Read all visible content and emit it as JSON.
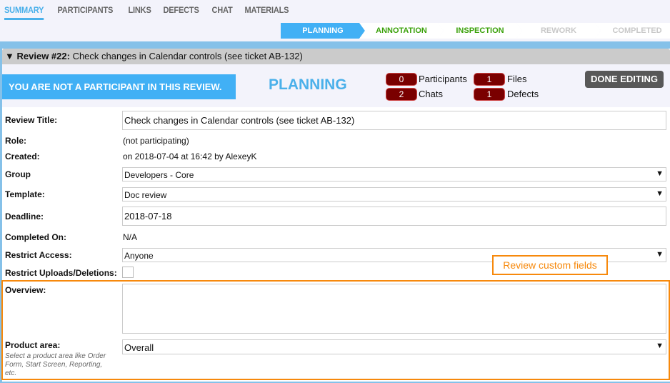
{
  "tabs": [
    "SUMMARY",
    "PARTICIPANTS",
    "LINKS",
    "DEFECTS",
    "CHAT",
    "MATERIALS"
  ],
  "steps": [
    {
      "label": "PLANNING",
      "color": "#ffffff"
    },
    {
      "label": "ANNOTATION",
      "color": "#3aa10a"
    },
    {
      "label": "INSPECTION",
      "color": "#3aa10a"
    },
    {
      "label": "REWORK",
      "color": "#c8c8c8"
    },
    {
      "label": "COMPLETED",
      "color": "#c8c8c8"
    }
  ],
  "review": {
    "title_prefix": "Review #22:",
    "title": "Check changes in Calendar controls (see ticket AB-132)"
  },
  "notice": "YOU ARE NOT A PARTICIPANT IN THIS REVIEW.",
  "phase": "PLANNING",
  "counts": {
    "participants": {
      "n": "0",
      "label": "Participants"
    },
    "files": {
      "n": "1",
      "label": "Files"
    },
    "chats": {
      "n": "2",
      "label": "Chats"
    },
    "defects": {
      "n": "1",
      "label": "Defects"
    }
  },
  "done_label": "DONE EDITING",
  "form": {
    "title_label": "Review Title:",
    "title_value": "Check changes in Calendar controls (see ticket AB-132)",
    "role_label": "Role:",
    "role_value": "(not participating)",
    "created_label": "Created:",
    "created_value": "on 2018-07-04 at 16:42 by AlexeyK",
    "group_label": "Group",
    "group_value": "Developers - Core",
    "template_label": "Template:",
    "template_value": "Doc review",
    "deadline_label": "Deadline:",
    "deadline_value": "2018-07-18",
    "completed_label": "Completed On:",
    "completed_value": "N/A",
    "restrict_label": "Restrict Access:",
    "restrict_value": "Anyone",
    "uploads_label": "Restrict Uploads/Deletions:",
    "overview_label": "Overview:",
    "product_label": "Product area:",
    "product_hint": "Select a product area like Order Form, Start Screen, Reporting, etc.",
    "product_value": "Overall"
  },
  "callout": "Review custom fields",
  "accent": "#41b0f5",
  "highlight": "#f7890c"
}
